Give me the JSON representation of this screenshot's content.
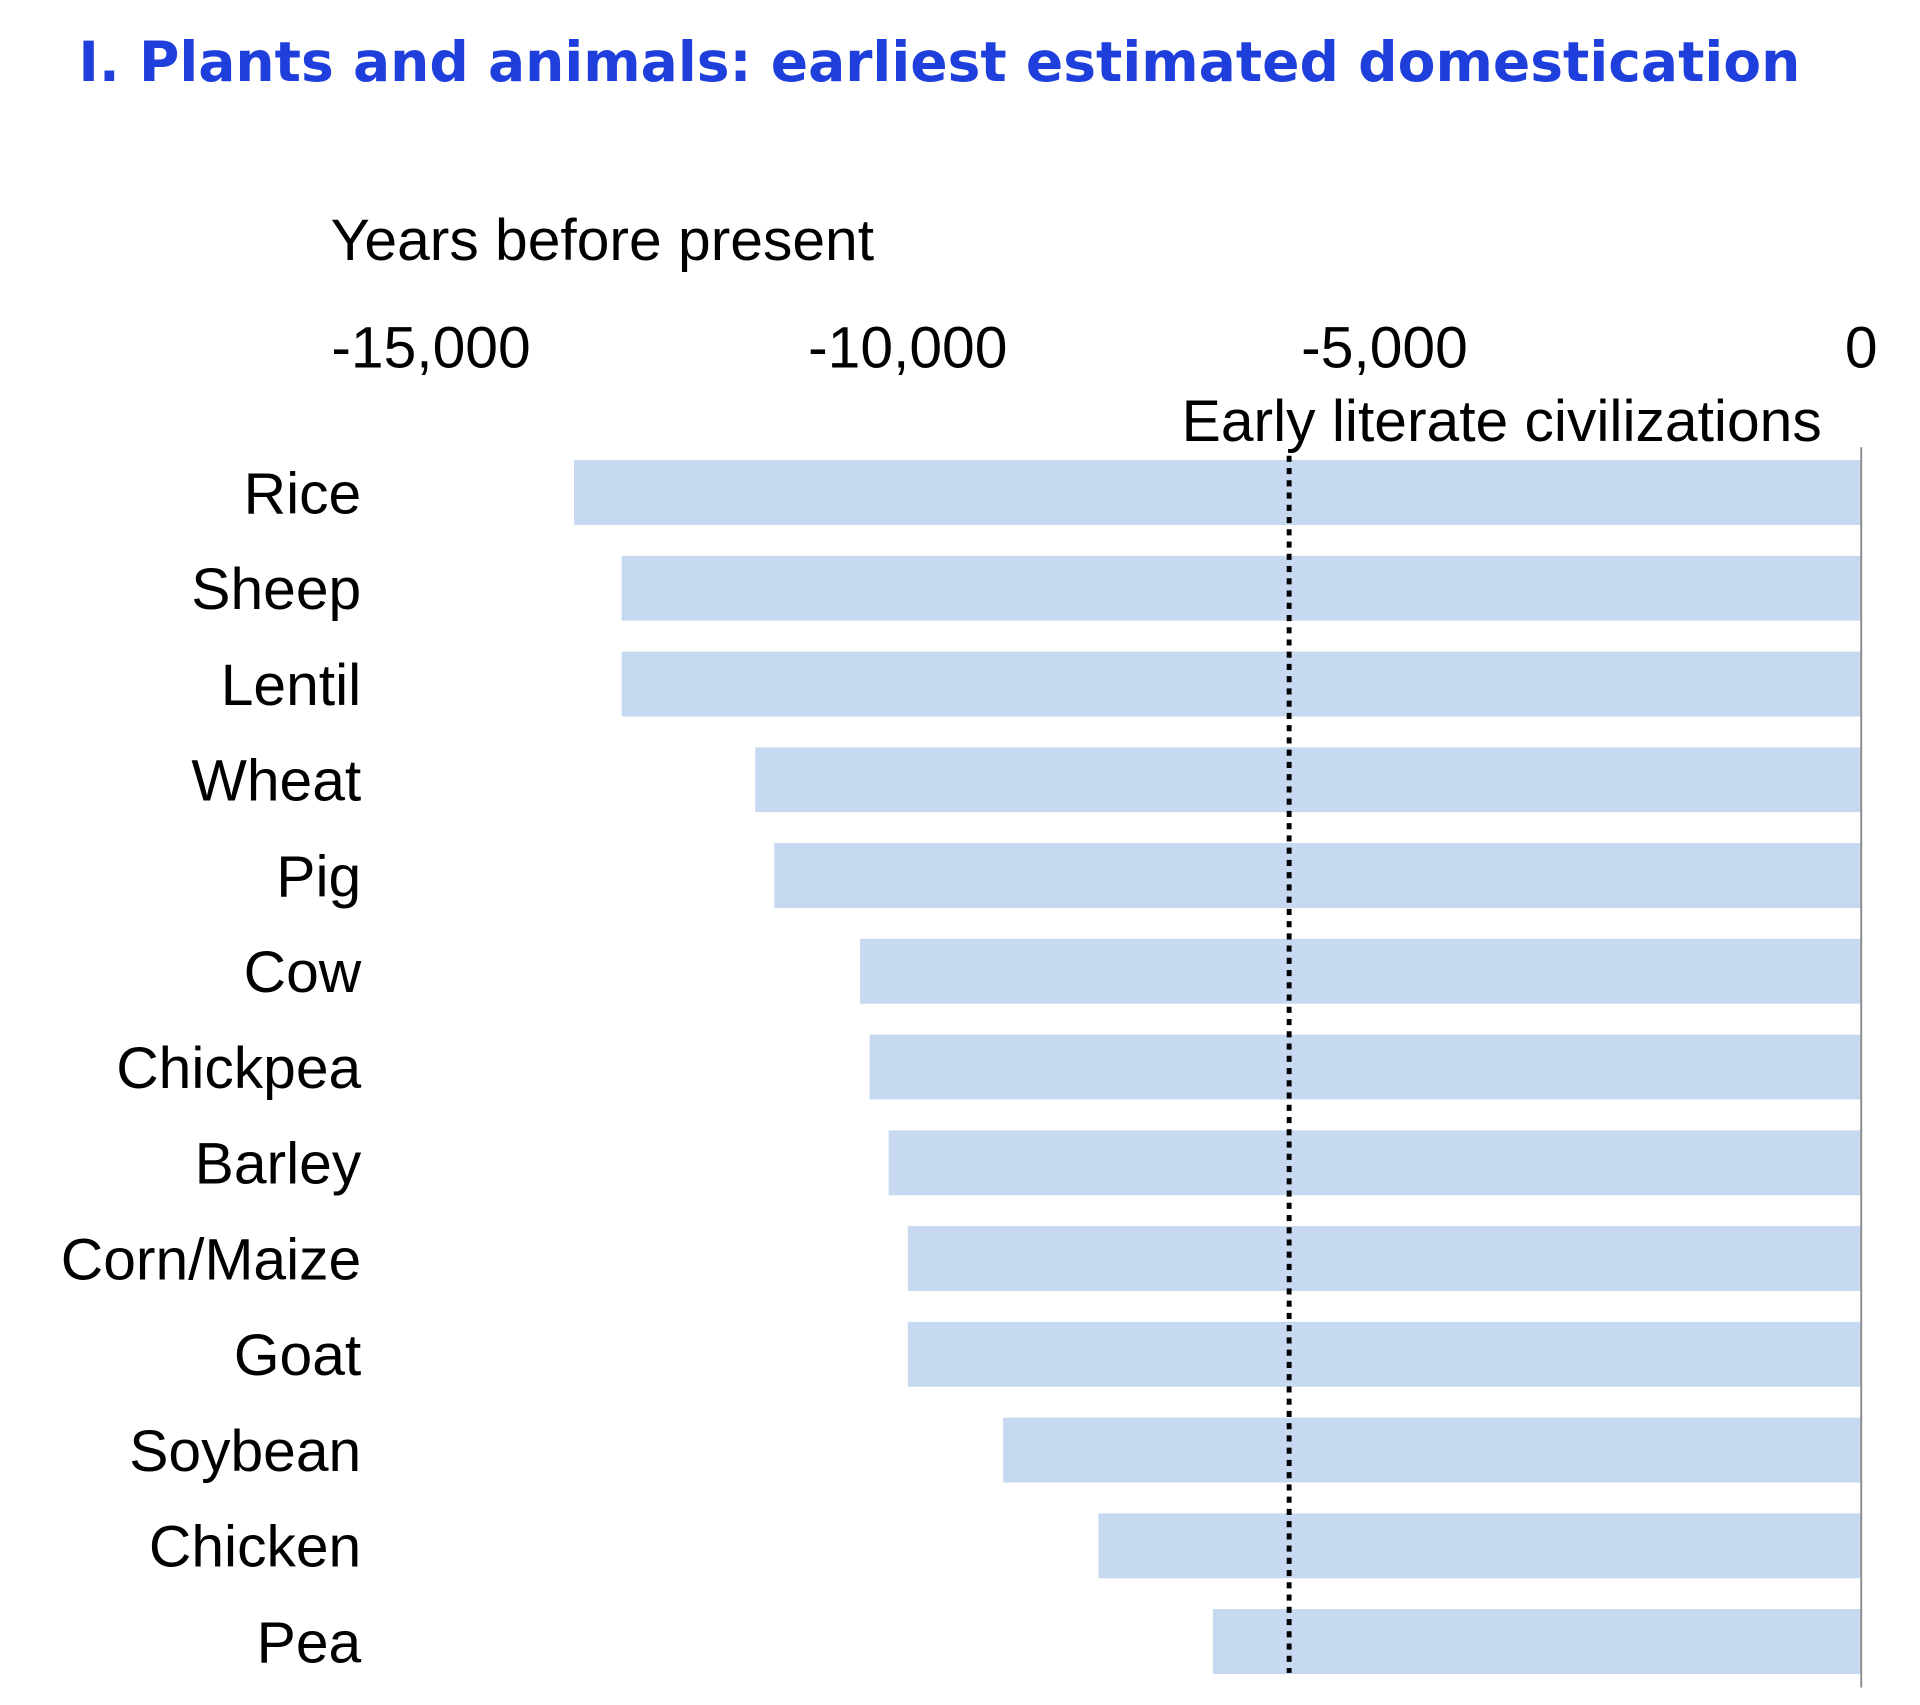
{
  "title": "I. Plants and animals: earliest estimated domestication",
  "chart_data": {
    "type": "bar",
    "orientation": "horizontal",
    "title": "I. Plants and animals: earliest estimated domestication",
    "xlabel": "Years before present",
    "ylabel": "",
    "xlim": [
      -15000,
      0
    ],
    "x_ticks": [
      -15000,
      -10000,
      -5000,
      0
    ],
    "x_tick_labels": [
      "-15,000",
      "-10,000",
      "-5,000",
      "0"
    ],
    "x_axis_position": "top",
    "grid": false,
    "bar_color": "#c7d9f0",
    "categories": [
      "Rice",
      "Sheep",
      "Lentil",
      "Wheat",
      "Pig",
      "Cow",
      "Chickpea",
      "Barley",
      "Corn/Maize",
      "Goat",
      "Soybean",
      "Chicken",
      "Pea"
    ],
    "values": [
      -13500,
      -13000,
      -13000,
      -11600,
      -11400,
      -10500,
      -10400,
      -10200,
      -10000,
      -10000,
      -9000,
      -8000,
      -6800
    ],
    "reference_line": {
      "x": -6000,
      "label": "Early literate civilizations",
      "style": "dotted",
      "color": "#000000"
    }
  }
}
